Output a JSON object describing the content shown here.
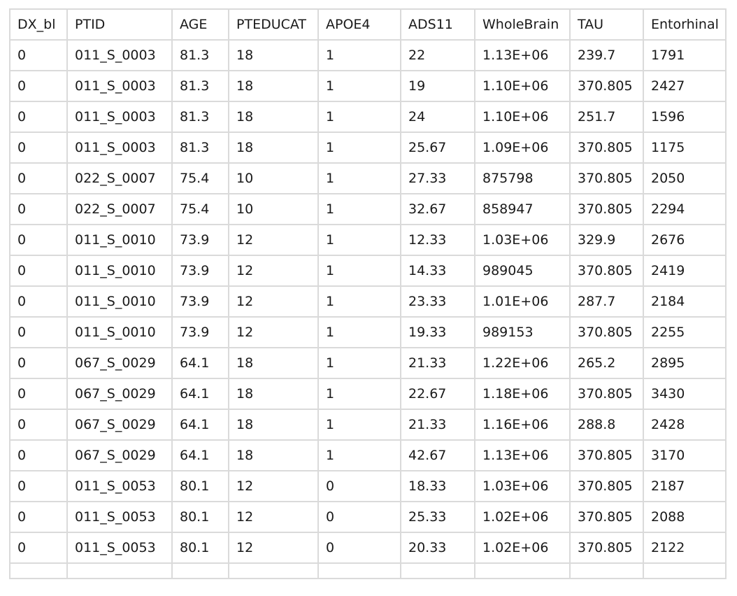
{
  "table": {
    "columns": [
      "DX_bl",
      "PTID",
      "AGE",
      "PTEDUCAT",
      "APOE4",
      "ADS11",
      "WholeBrain",
      "TAU",
      "Entorhinal"
    ],
    "rows": [
      [
        "0",
        "011_S_0003",
        "81.3",
        "18",
        "1",
        "22",
        "1.13E+06",
        "239.7",
        "1791"
      ],
      [
        "0",
        "011_S_0003",
        "81.3",
        "18",
        "1",
        "19",
        "1.10E+06",
        "370.805",
        "2427"
      ],
      [
        "0",
        "011_S_0003",
        "81.3",
        "18",
        "1",
        "24",
        "1.10E+06",
        "251.7",
        "1596"
      ],
      [
        "0",
        "011_S_0003",
        "81.3",
        "18",
        "1",
        "25.67",
        "1.09E+06",
        "370.805",
        "1175"
      ],
      [
        "0",
        "022_S_0007",
        "75.4",
        "10",
        "1",
        "27.33",
        "875798",
        "370.805",
        "2050"
      ],
      [
        "0",
        "022_S_0007",
        "75.4",
        "10",
        "1",
        "32.67",
        "858947",
        "370.805",
        "2294"
      ],
      [
        "0",
        "011_S_0010",
        "73.9",
        "12",
        "1",
        "12.33",
        "1.03E+06",
        "329.9",
        "2676"
      ],
      [
        "0",
        "011_S_0010",
        "73.9",
        "12",
        "1",
        "14.33",
        "989045",
        "370.805",
        "2419"
      ],
      [
        "0",
        "011_S_0010",
        "73.9",
        "12",
        "1",
        "23.33",
        "1.01E+06",
        "287.7",
        "2184"
      ],
      [
        "0",
        "011_S_0010",
        "73.9",
        "12",
        "1",
        "19.33",
        "989153",
        "370.805",
        "2255"
      ],
      [
        "0",
        "067_S_0029",
        "64.1",
        "18",
        "1",
        "21.33",
        "1.22E+06",
        "265.2",
        "2895"
      ],
      [
        "0",
        "067_S_0029",
        "64.1",
        "18",
        "1",
        "22.67",
        "1.18E+06",
        "370.805",
        "3430"
      ],
      [
        "0",
        "067_S_0029",
        "64.1",
        "18",
        "1",
        "21.33",
        "1.16E+06",
        "288.8",
        "2428"
      ],
      [
        "0",
        "067_S_0029",
        "64.1",
        "18",
        "1",
        "42.67",
        "1.13E+06",
        "370.805",
        "3170"
      ],
      [
        "0",
        "011_S_0053",
        "80.1",
        "12",
        "0",
        "18.33",
        "1.03E+06",
        "370.805",
        "2187"
      ],
      [
        "0",
        "011_S_0053",
        "80.1",
        "12",
        "0",
        "25.33",
        "1.02E+06",
        "370.805",
        "2088"
      ],
      [
        "0",
        "011_S_0053",
        "80.1",
        "12",
        "0",
        "20.33",
        "1.02E+06",
        "370.805",
        "2122"
      ]
    ]
  }
}
